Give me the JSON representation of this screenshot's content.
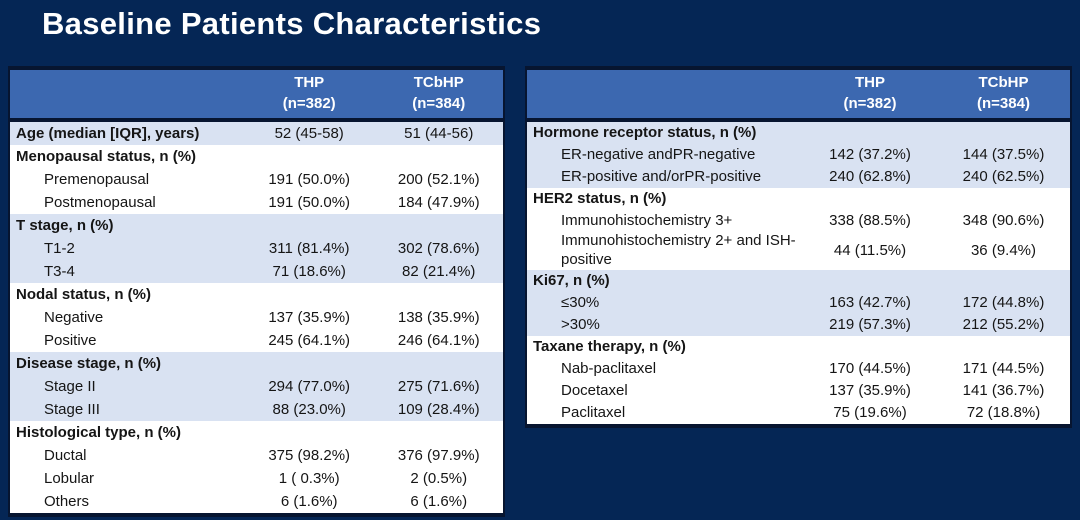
{
  "title": "Baseline Patients Characteristics",
  "colors": {
    "background_navy": "#052655",
    "header_blue": "#3C68B0",
    "band_light_blue": "#D9E2F2",
    "band_white": "#FFFFFF",
    "border_dark": "#071530",
    "title_text": "#FFFFFF",
    "body_text": "#151515"
  },
  "tables": [
    {
      "name": "baseline-table-left",
      "header": {
        "cols": [
          {
            "label": "THP",
            "n": "(n=382)"
          },
          {
            "label": "TCbHP",
            "n": "(n=384)"
          }
        ]
      },
      "sections": [
        {
          "title": "Age (median [IQR], years)",
          "thp": "52 (45-58)",
          "tcbhp": "51 (44-56)",
          "items": []
        },
        {
          "title": "Menopausal status, n (%)",
          "items": [
            {
              "label": "Premenopausal",
              "thp": "191 (50.0%)",
              "tcbhp": "200 (52.1%)"
            },
            {
              "label": "Postmenopausal",
              "thp": "191 (50.0%)",
              "tcbhp": "184 (47.9%)"
            }
          ]
        },
        {
          "title": "T stage, n (%)",
          "items": [
            {
              "label": "T1-2",
              "thp": "311 (81.4%)",
              "tcbhp": "302 (78.6%)"
            },
            {
              "label": "T3-4",
              "thp": "71 (18.6%)",
              "tcbhp": "82 (21.4%)"
            }
          ]
        },
        {
          "title": "Nodal status, n (%)",
          "items": [
            {
              "label": "Negative",
              "thp": "137 (35.9%)",
              "tcbhp": "138 (35.9%)"
            },
            {
              "label": "Positive",
              "thp": "245 (64.1%)",
              "tcbhp": "246 (64.1%)"
            }
          ]
        },
        {
          "title": "Disease stage, n (%)",
          "items": [
            {
              "label": "Stage II",
              "thp": "294 (77.0%)",
              "tcbhp": "275 (71.6%)"
            },
            {
              "label": "Stage III",
              "thp": "88 (23.0%)",
              "tcbhp": "109 (28.4%)"
            }
          ]
        },
        {
          "title": "Histological type, n (%)",
          "items": [
            {
              "label": "Ductal",
              "thp": "375 (98.2%)",
              "tcbhp": "376 (97.9%)"
            },
            {
              "label": "Lobular",
              "thp": "1 ( 0.3%)",
              "tcbhp": "2 (0.5%)"
            },
            {
              "label": "Others",
              "thp": "6 (1.6%)",
              "tcbhp": "6 (1.6%)"
            }
          ]
        }
      ]
    },
    {
      "name": "baseline-table-right",
      "header": {
        "cols": [
          {
            "label": "THP",
            "n": "(n=382)"
          },
          {
            "label": "TCbHP",
            "n": "(n=384)"
          }
        ]
      },
      "sections": [
        {
          "title": "Hormone receptor status, n (%)",
          "items": [
            {
              "label": "ER-negative andPR-negative",
              "thp": "142 (37.2%)",
              "tcbhp": "144 (37.5%)"
            },
            {
              "label": "ER-positive and/orPR-positive",
              "thp": "240 (62.8%)",
              "tcbhp": "240 (62.5%)"
            }
          ]
        },
        {
          "title": "HER2 status, n (%)",
          "items": [
            {
              "label": "Immunohistochemistry 3+",
              "thp": "338 (88.5%)",
              "tcbhp": "348 (90.6%)"
            },
            {
              "label": "Immunohistochemistry 2+ and ISH-positive",
              "thp": "44 (11.5%)",
              "tcbhp": "36 (9.4%)"
            }
          ]
        },
        {
          "title": "Ki67, n (%)",
          "items": [
            {
              "label": "≤30%",
              "thp": "163 (42.7%)",
              "tcbhp": "172 (44.8%)"
            },
            {
              "label": ">30%",
              "thp": "219 (57.3%)",
              "tcbhp": "212 (55.2%)"
            }
          ]
        },
        {
          "title": "Taxane therapy, n (%)",
          "items": [
            {
              "label": "Nab-paclitaxel",
              "thp": "170 (44.5%)",
              "tcbhp": "171 (44.5%)"
            },
            {
              "label": "Docetaxel",
              "thp": "137 (35.9%)",
              "tcbhp": "141 (36.7%)"
            },
            {
              "label": "Paclitaxel",
              "thp": "75 (19.6%)",
              "tcbhp": "72 (18.8%)"
            }
          ]
        }
      ]
    }
  ]
}
